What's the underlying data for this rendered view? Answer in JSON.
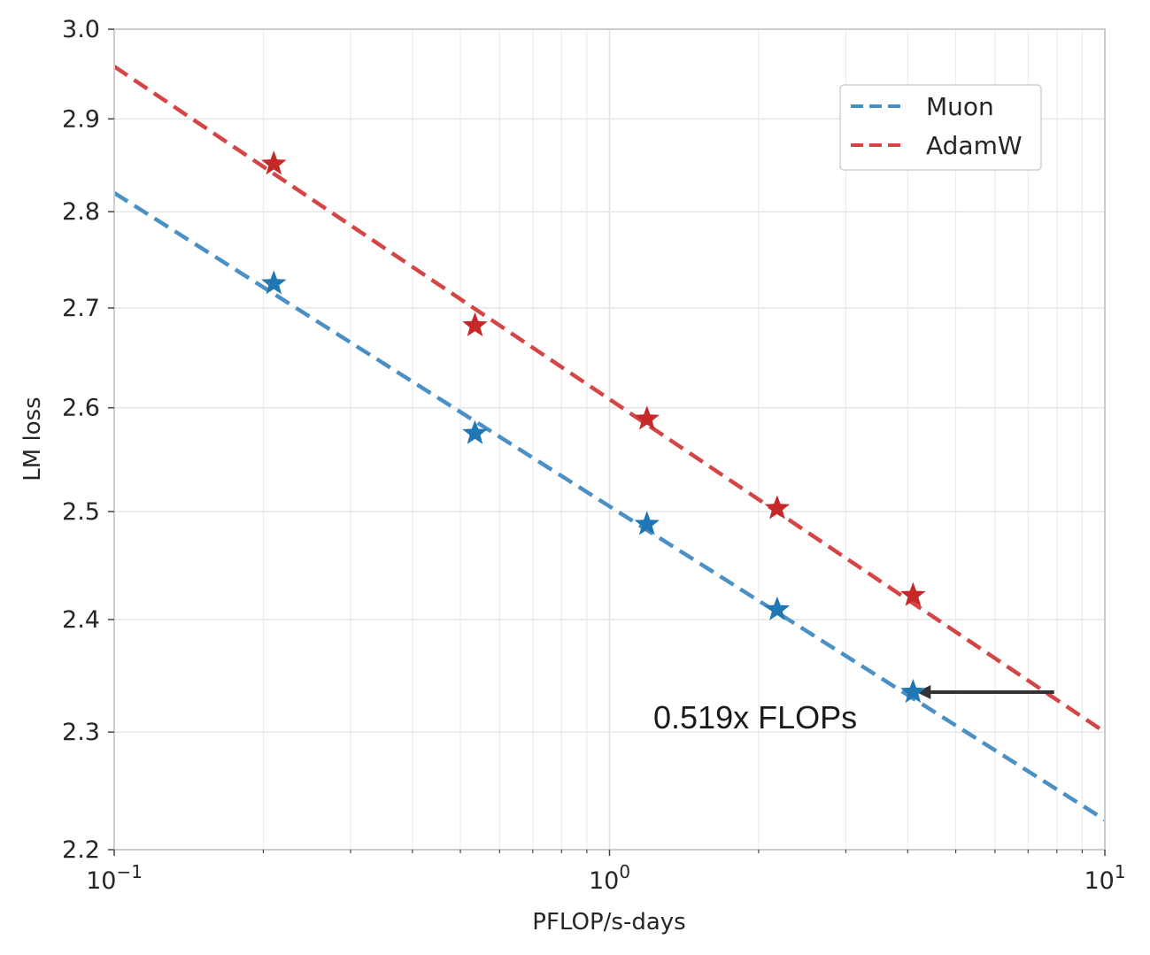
{
  "chart_data": {
    "type": "scatter",
    "title": "",
    "xlabel": "PFLOP/s-days",
    "ylabel": "LM loss",
    "xscale": "log",
    "xlim": [
      0.1,
      10
    ],
    "ylim": [
      2.2,
      3.0
    ],
    "ylog": true,
    "x_ticks": [
      {
        "value": 0.1,
        "base": "10",
        "exp": "−1"
      },
      {
        "value": 1,
        "base": "10",
        "exp": "0"
      },
      {
        "value": 10,
        "base": "10",
        "exp": "1"
      }
    ],
    "y_ticks": [
      "2.2",
      "2.3",
      "2.4",
      "2.5",
      "2.6",
      "2.7",
      "2.8",
      "2.9",
      "3.0"
    ],
    "grid": true,
    "legend_position": "upper-right",
    "series": [
      {
        "name": "Muon",
        "color": "#1f77b4",
        "line_color": "#4a90c4",
        "points": [
          {
            "x": 0.21,
            "y": 2.725
          },
          {
            "x": 0.535,
            "y": 2.575
          },
          {
            "x": 1.19,
            "y": 2.488
          },
          {
            "x": 2.18,
            "y": 2.409
          },
          {
            "x": 4.1,
            "y": 2.335
          }
        ],
        "fit_line": [
          {
            "x": 0.1,
            "y": 2.82
          },
          {
            "x": 10,
            "y": 2.225
          }
        ]
      },
      {
        "name": "AdamW",
        "color": "#c62828",
        "line_color": "#d64545",
        "points": [
          {
            "x": 0.21,
            "y": 2.851
          },
          {
            "x": 0.535,
            "y": 2.682
          },
          {
            "x": 1.19,
            "y": 2.589
          },
          {
            "x": 2.18,
            "y": 2.503
          },
          {
            "x": 4.1,
            "y": 2.422
          }
        ],
        "fit_line": [
          {
            "x": 0.1,
            "y": 2.958
          },
          {
            "x": 10,
            "y": 2.3
          }
        ]
      }
    ],
    "annotation": {
      "text": "0.519x FLOPs",
      "arrow_from": {
        "x": 7.9,
        "y": 2.335
      },
      "arrow_to": {
        "x": 4.1,
        "y": 2.335
      }
    }
  }
}
